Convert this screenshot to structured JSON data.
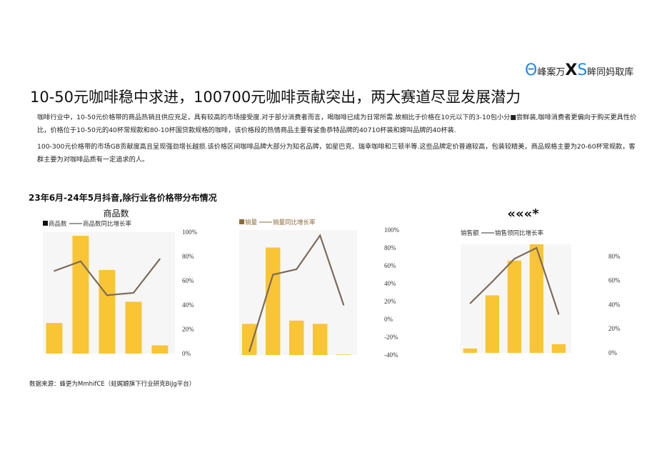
{
  "logo": {
    "text_a": "峰案万",
    "x": "X",
    "s": "S",
    "text_b": "眸同妈取库",
    "circle": "Θ"
  },
  "title": "10-50元咖啡稳中求进，100700元咖啡贡献突出，两大赛道尽显发展潜力",
  "paragraphs": [
    "咖啡行业中，10-50元价格带的商品热销且供应充足，具有较高的市场接受度.对于部分消费者而言，喝咖啡已成为日常所需.故相比于价格在10元以下的3-10包小分■尝鲜装,咖啡消费者更偏向于购买更具性价比，价格位于10-50元的40杯常规款和80-10杯国贷款规格的咖啡，该价格段的热情商品主要有娑鱼恭特品牌的40710杯装和嫦叫品牌的40杯装.",
    "100-300元价格带的市场GB贡献度高且呈现强劲增长越损.该价格区间咖啡品牌大部分为知名品牌，如星巴克、瑞幸咖啡和三顿半等.这些品牌定价普遍较高，包装较精美，商品规格主要为20-60杯常规款，客群主要为对咖啡品质有一定追求的人。"
  ],
  "section_title": "23年6月-24年5月抖音,除行业各价格带分布情况",
  "source": "数据来源：蜂更为MmhifCE（蛀娓嫄旗下行业研克BiJg平台）",
  "colors": {
    "bar": "#f9c535",
    "line": "#7d6a5a",
    "legend_bar": "#8a6b3a"
  },
  "chart_data": [
    {
      "type": "bar+line",
      "title": "商品数",
      "legend": [
        "商品数",
        "商品数同比增长率"
      ],
      "bar_values_relative": [
        26,
        100,
        71,
        44,
        7
      ],
      "line_values": [
        68,
        76,
        48,
        50,
        78
      ],
      "y_ticks": [
        "100%",
        "80%",
        "60%",
        "40%",
        "20%",
        "0%"
      ],
      "ylim": [
        0,
        100
      ]
    },
    {
      "type": "bar+line",
      "title": "",
      "legend": [
        "销量",
        "销量同比增长率"
      ],
      "bar_values_relative": [
        29,
        100,
        32,
        29,
        0.5
      ],
      "line_values": [
        -36,
        50,
        56,
        94,
        16
      ],
      "y_ticks": [
        "100%",
        "80%",
        "60%",
        "40%",
        "20%",
        "0%",
        "-20%",
        "-40%"
      ],
      "ylim": [
        -40,
        100
      ]
    },
    {
      "type": "bar+line",
      "title": "«««*",
      "legend": [
        "销售额",
        "销售领同比增长率"
      ],
      "bar_values_relative": [
        4,
        53,
        85,
        100,
        8
      ],
      "line_values": [
        41,
        59,
        78,
        87,
        32
      ],
      "y_ticks": [
        "80%",
        "60%",
        "40%",
        "20%",
        "0%"
      ],
      "ylim": [
        0,
        90
      ]
    }
  ]
}
